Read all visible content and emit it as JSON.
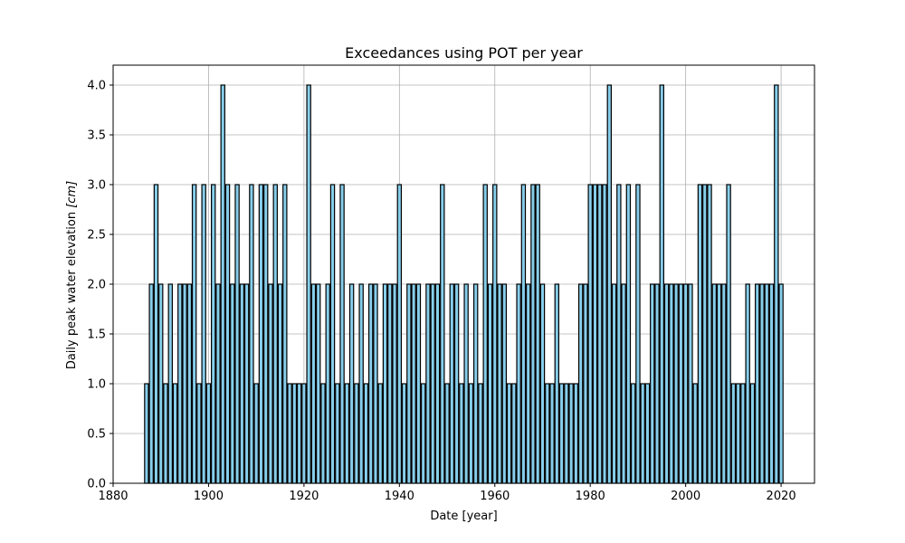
{
  "chart_data": {
    "type": "bar",
    "title": "Exceedances using POT per year",
    "xlabel": "Date [year]",
    "ylabel_prefix": "Daily peak water elevation ",
    "ylabel_unit": "[cm]",
    "xlim": [
      1880,
      2027
    ],
    "ylim": [
      0,
      4.2
    ],
    "xticks": [
      1880,
      1900,
      1920,
      1940,
      1960,
      1980,
      2000,
      2020
    ],
    "xtick_labels": [
      "1880",
      "1900",
      "1920",
      "1940",
      "1960",
      "1980",
      "2000",
      "2020"
    ],
    "yticks": [
      0,
      0.5,
      1,
      1.5,
      2,
      2.5,
      3,
      3.5,
      4
    ],
    "ytick_labels": [
      "0.0",
      "0.5",
      "1.0",
      "1.5",
      "2.0",
      "2.5",
      "3.0",
      "3.5",
      "4.0"
    ],
    "grid": true,
    "bar_color": "#87ceeb",
    "bar_edge_color": "#000000",
    "x": [
      1887,
      1888,
      1889,
      1890,
      1891,
      1892,
      1893,
      1894,
      1895,
      1896,
      1897,
      1898,
      1899,
      1900,
      1901,
      1902,
      1903,
      1904,
      1905,
      1906,
      1907,
      1908,
      1909,
      1910,
      1911,
      1912,
      1913,
      1914,
      1915,
      1916,
      1917,
      1918,
      1919,
      1920,
      1921,
      1922,
      1923,
      1924,
      1925,
      1926,
      1927,
      1928,
      1929,
      1930,
      1931,
      1932,
      1933,
      1934,
      1935,
      1936,
      1937,
      1938,
      1939,
      1940,
      1941,
      1942,
      1943,
      1944,
      1945,
      1946,
      1947,
      1948,
      1949,
      1950,
      1951,
      1952,
      1953,
      1954,
      1955,
      1956,
      1957,
      1958,
      1959,
      1960,
      1961,
      1962,
      1963,
      1964,
      1965,
      1966,
      1967,
      1968,
      1969,
      1970,
      1971,
      1972,
      1973,
      1974,
      1975,
      1976,
      1977,
      1978,
      1979,
      1980,
      1981,
      1982,
      1983,
      1984,
      1985,
      1986,
      1987,
      1988,
      1989,
      1990,
      1991,
      1992,
      1993,
      1994,
      1995,
      1996,
      1997,
      1998,
      1999,
      2000,
      2001,
      2002,
      2003,
      2004,
      2005,
      2006,
      2007,
      2008,
      2009,
      2010,
      2011,
      2012,
      2013,
      2014,
      2015,
      2016,
      2017,
      2018,
      2019,
      2020
    ],
    "values": [
      1,
      2,
      3,
      2,
      1,
      2,
      1,
      2,
      2,
      2,
      3,
      1,
      3,
      1,
      3,
      2,
      4,
      3,
      2,
      3,
      2,
      2,
      3,
      1,
      3,
      3,
      2,
      3,
      2,
      3,
      1,
      1,
      1,
      1,
      4,
      2,
      2,
      1,
      2,
      3,
      1,
      3,
      1,
      2,
      1,
      2,
      1,
      2,
      2,
      1,
      2,
      2,
      2,
      3,
      1,
      2,
      2,
      2,
      1,
      2,
      2,
      2,
      3,
      1,
      2,
      2,
      1,
      2,
      1,
      2,
      1,
      3,
      2,
      3,
      2,
      2,
      1,
      1,
      2,
      3,
      2,
      3,
      3,
      2,
      1,
      1,
      2,
      1,
      1,
      1,
      1,
      2,
      2,
      3,
      3,
      3,
      3,
      4,
      2,
      3,
      2,
      3,
      1,
      3,
      1,
      1,
      2,
      2,
      4,
      2,
      2,
      2,
      2,
      2,
      2,
      1,
      3,
      3,
      3,
      2,
      2,
      2,
      3,
      1,
      1,
      1,
      2,
      1,
      2,
      2,
      2,
      2,
      4,
      2
    ]
  }
}
